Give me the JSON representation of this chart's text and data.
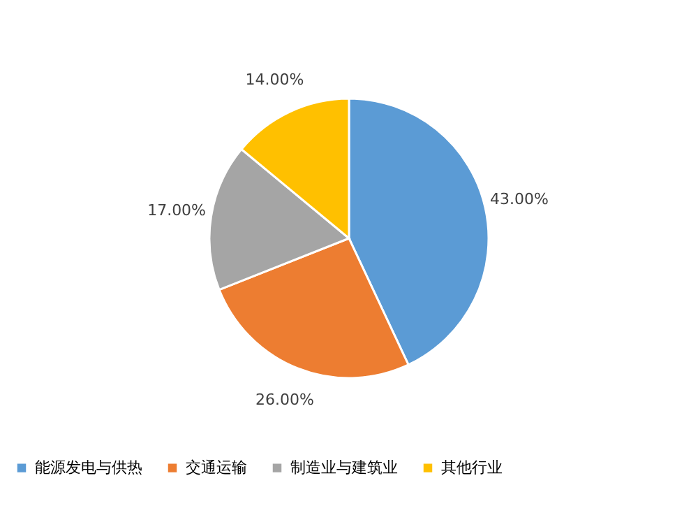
{
  "chart_data": {
    "type": "pie",
    "categories": [
      "能源发电与供热",
      "交通运输",
      "制造业与建筑业",
      "其他行业"
    ],
    "values": [
      43,
      26,
      17,
      14
    ],
    "value_labels": [
      "43.00%",
      "26.00%",
      "17.00%",
      "14.00%"
    ],
    "colors": [
      "#5b9bd5",
      "#ed7d31",
      "#a5a5a5",
      "#ffc000"
    ],
    "legend": "bottom"
  }
}
